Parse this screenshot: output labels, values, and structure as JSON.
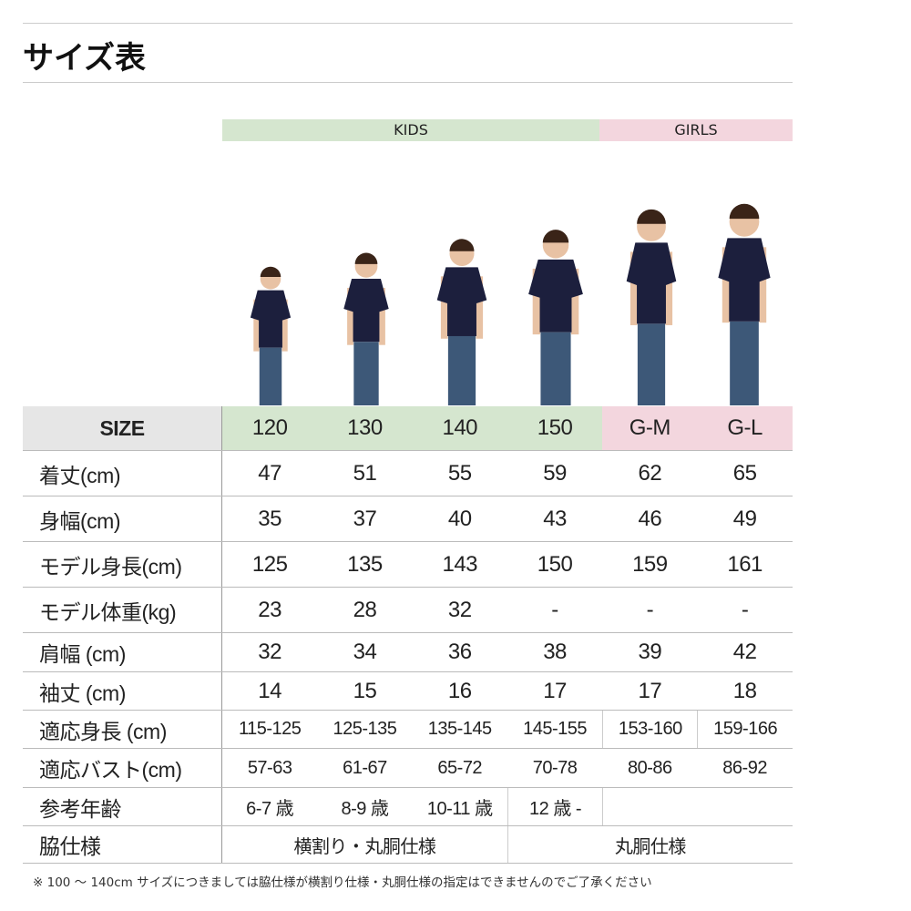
{
  "title": "サイズ表",
  "groups": {
    "kids": "KIDS",
    "girls": "GIRLS"
  },
  "colors": {
    "kids_band": "#d5e6cf",
    "girls_band": "#f3d6de",
    "size_label_bg": "#e6e6e6",
    "shirt": "#1c1f3d",
    "jeans": "#3d5878"
  },
  "rows": [
    {
      "label": "SIZE",
      "cells": [
        {
          "t": "120"
        },
        {
          "t": "130"
        },
        {
          "t": "140"
        },
        {
          "t": "150"
        },
        {
          "t": "G-M"
        },
        {
          "t": "G-L"
        }
      ]
    },
    {
      "label": "着丈(cm)",
      "cells": [
        {
          "t": "47"
        },
        {
          "t": "51"
        },
        {
          "t": "55"
        },
        {
          "t": "59"
        },
        {
          "t": "62"
        },
        {
          "t": "65"
        }
      ]
    },
    {
      "label": "身幅(cm)",
      "cells": [
        {
          "t": "35"
        },
        {
          "t": "37"
        },
        {
          "t": "40"
        },
        {
          "t": "43"
        },
        {
          "t": "46"
        },
        {
          "t": "49"
        }
      ]
    },
    {
      "label": "モデル身長(cm)",
      "cells": [
        {
          "t": "125"
        },
        {
          "t": "135"
        },
        {
          "t": "143"
        },
        {
          "t": "150"
        },
        {
          "t": "159"
        },
        {
          "t": "161"
        }
      ]
    },
    {
      "label": "モデル体重(kg)",
      "cells": [
        {
          "t": "23"
        },
        {
          "t": "28"
        },
        {
          "t": "32"
        },
        {
          "t": "-"
        },
        {
          "t": "-"
        },
        {
          "t": "-"
        }
      ]
    },
    {
      "label": "肩幅 (cm)",
      "cells": [
        {
          "t": "32"
        },
        {
          "t": "34"
        },
        {
          "t": "36"
        },
        {
          "t": "38"
        },
        {
          "t": "39"
        },
        {
          "t": "42"
        }
      ]
    },
    {
      "label": "袖丈 (cm)",
      "cells": [
        {
          "t": "14"
        },
        {
          "t": "15"
        },
        {
          "t": "16"
        },
        {
          "t": "17"
        },
        {
          "t": "17"
        },
        {
          "t": "18"
        }
      ]
    },
    {
      "label": "適応身長 (cm)",
      "cells": [
        {
          "t": "115-125"
        },
        {
          "t": "125-135"
        },
        {
          "t": "135-145"
        },
        {
          "t": "145-155"
        },
        {
          "t": "153-160"
        },
        {
          "t": "159-166"
        }
      ]
    },
    {
      "label": "適応バスト(cm)",
      "cells": [
        {
          "t": "57-63"
        },
        {
          "t": "61-67"
        },
        {
          "t": "65-72"
        },
        {
          "t": "70-78"
        },
        {
          "t": "80-86"
        },
        {
          "t": "86-92"
        }
      ]
    },
    {
      "label": "参考年齢",
      "cells": [
        {
          "t": "6-7 歳"
        },
        {
          "t": "8-9 歳"
        },
        {
          "t": "10-11 歳"
        },
        {
          "t": "12 歳 -"
        },
        {
          "t": "",
          "span": 2
        }
      ]
    },
    {
      "label": "脇仕様",
      "cells": [
        {
          "t": "横割り・丸胴仕様",
          "span": 3
        },
        {
          "t": "丸胴仕様",
          "span": 3
        }
      ]
    }
  ],
  "footnote": "※ 100 ～ 140cm サイズにつきましては脇仕様が横割り仕様・丸胴仕様の指定はできませんのでご了承ください"
}
